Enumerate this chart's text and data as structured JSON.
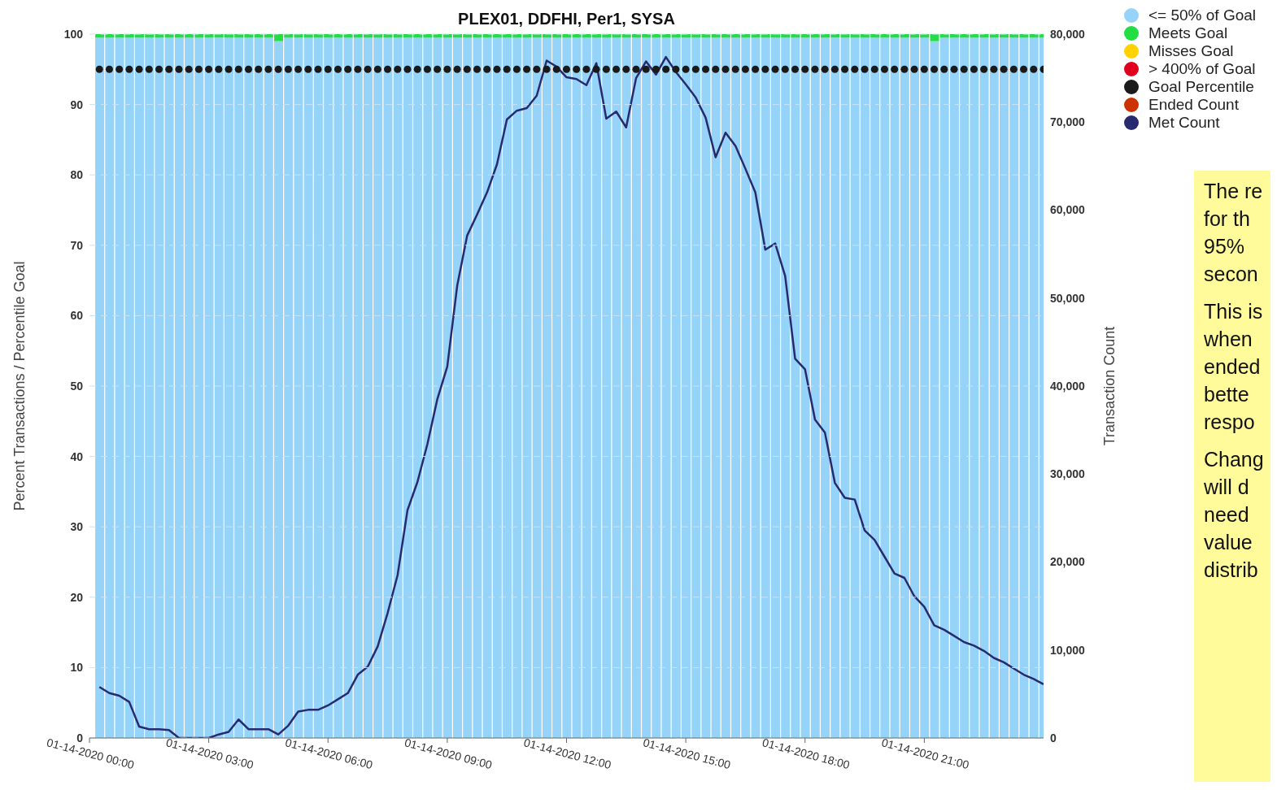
{
  "chart_data": {
    "type": "bar",
    "title": "PLEX01, DDFHI, Per1, SYSA",
    "ylabel": "Percent Transactions / Percentile Goal",
    "y2label": "Transaction Count",
    "stacked": true,
    "grid": "y",
    "legend": "top right",
    "x": [
      "2020-01-14T00:15",
      "2020-01-14T00:30",
      "2020-01-14T00:45",
      "2020-01-14T01:00",
      "2020-01-14T01:15",
      "2020-01-14T01:30",
      "2020-01-14T01:45",
      "2020-01-14T02:00",
      "2020-01-14T02:15",
      "2020-01-14T02:30",
      "2020-01-14T02:45",
      "2020-01-14T03:00",
      "2020-01-14T03:15",
      "2020-01-14T03:30",
      "2020-01-14T03:45",
      "2020-01-14T04:00",
      "2020-01-14T04:15",
      "2020-01-14T04:30",
      "2020-01-14T04:45",
      "2020-01-14T05:00",
      "2020-01-14T05:15",
      "2020-01-14T05:30",
      "2020-01-14T05:45",
      "2020-01-14T06:00",
      "2020-01-14T06:15",
      "2020-01-14T06:30",
      "2020-01-14T06:45",
      "2020-01-14T07:00",
      "2020-01-14T07:15",
      "2020-01-14T07:30",
      "2020-01-14T07:45",
      "2020-01-14T08:00",
      "2020-01-14T08:15",
      "2020-01-14T08:30",
      "2020-01-14T08:45",
      "2020-01-14T09:00",
      "2020-01-14T09:15",
      "2020-01-14T09:30",
      "2020-01-14T09:45",
      "2020-01-14T10:00",
      "2020-01-14T10:15",
      "2020-01-14T10:30",
      "2020-01-14T10:45",
      "2020-01-14T11:00",
      "2020-01-14T11:15",
      "2020-01-14T11:30",
      "2020-01-14T11:45",
      "2020-01-14T12:00",
      "2020-01-14T12:15",
      "2020-01-14T12:30",
      "2020-01-14T12:45",
      "2020-01-14T13:00",
      "2020-01-14T13:15",
      "2020-01-14T13:30",
      "2020-01-14T13:45",
      "2020-01-14T14:00",
      "2020-01-14T14:15",
      "2020-01-14T14:30",
      "2020-01-14T14:45",
      "2020-01-14T15:00",
      "2020-01-14T15:15",
      "2020-01-14T15:30",
      "2020-01-14T15:45",
      "2020-01-14T16:00",
      "2020-01-14T16:15",
      "2020-01-14T16:30",
      "2020-01-14T16:45",
      "2020-01-14T17:00",
      "2020-01-14T17:15",
      "2020-01-14T17:30",
      "2020-01-14T17:45",
      "2020-01-14T18:00",
      "2020-01-14T18:15",
      "2020-01-14T18:30",
      "2020-01-14T18:45",
      "2020-01-14T19:00",
      "2020-01-14T19:15",
      "2020-01-14T19:30",
      "2020-01-14T19:45",
      "2020-01-14T20:00",
      "2020-01-14T20:15",
      "2020-01-14T20:30",
      "2020-01-14T20:45",
      "2020-01-14T21:00",
      "2020-01-14T21:15",
      "2020-01-14T21:30",
      "2020-01-14T21:45",
      "2020-01-14T22:00",
      "2020-01-14T22:15",
      "2020-01-14T22:30",
      "2020-01-14T22:45",
      "2020-01-14T23:00",
      "2020-01-14T23:15",
      "2020-01-14T23:30",
      "2020-01-14T23:45",
      "2020-01-15T00:00"
    ],
    "xlim": [
      "2020-01-14T00:00",
      "2020-01-15T00:00"
    ],
    "xticks": [
      {
        "value": "2020-01-14T00:00",
        "label": "01-14-2020 00:00"
      },
      {
        "value": "2020-01-14T03:00",
        "label": "01-14-2020 03:00"
      },
      {
        "value": "2020-01-14T06:00",
        "label": "01-14-2020 06:00"
      },
      {
        "value": "2020-01-14T09:00",
        "label": "01-14-2020 09:00"
      },
      {
        "value": "2020-01-14T12:00",
        "label": "01-14-2020 12:00"
      },
      {
        "value": "2020-01-14T15:00",
        "label": "01-14-2020 15:00"
      },
      {
        "value": "2020-01-14T18:00",
        "label": "01-14-2020 18:00"
      },
      {
        "value": "2020-01-14T21:00",
        "label": "01-14-2020 21:00"
      }
    ],
    "ylim": [
      0,
      100
    ],
    "yticks": [
      0,
      10,
      20,
      30,
      40,
      50,
      60,
      70,
      80,
      90,
      100
    ],
    "y2lim": [
      0,
      80000
    ],
    "y2ticks": [
      0,
      {
        "value": 10000,
        "label": "10,000"
      },
      {
        "value": 20000,
        "label": "20,000"
      },
      {
        "value": 30000,
        "label": "30,000"
      },
      {
        "value": 40000,
        "label": "40,000"
      },
      {
        "value": 50000,
        "label": "50,000"
      },
      {
        "value": 60000,
        "label": "60,000"
      },
      {
        "value": 70000,
        "label": "70,000"
      },
      {
        "value": 80000,
        "label": "80,000"
      }
    ],
    "series": [
      {
        "name": "<= 50% of Goal",
        "color": "#95d3f9",
        "values": [
          99.5,
          99.5,
          99.5,
          99.5,
          99.5,
          99.5,
          99.5,
          99.5,
          99.5,
          99.5,
          99.5,
          99.5,
          99.5,
          99.5,
          99.5,
          99.5,
          99.5,
          99.5,
          99,
          99.5,
          99.5,
          99.5,
          99.5,
          99.5,
          99.5,
          99.5,
          99.5,
          99.5,
          99.5,
          99.5,
          99.5,
          99.5,
          99.5,
          99.5,
          99.5,
          99.5,
          99.5,
          99.5,
          99.5,
          99.5,
          99.5,
          99.5,
          99.5,
          99.5,
          99.5,
          99.5,
          99.5,
          99.5,
          99.5,
          99.5,
          99.5,
          99.5,
          99.5,
          99.5,
          99.5,
          99.5,
          99.5,
          99.5,
          99.5,
          99.5,
          99.5,
          99.5,
          99.5,
          99.5,
          99.5,
          99.5,
          99.5,
          99.5,
          99.5,
          99.5,
          99.5,
          99.5,
          99.5,
          99.5,
          99.5,
          99.5,
          99.5,
          99.5,
          99.5,
          99.5,
          99.5,
          99.5,
          99.5,
          99.5,
          99,
          99.5,
          99.5,
          99.5,
          99.5,
          99.5,
          99.5,
          99.5,
          99.5,
          99.5,
          99.5,
          99.5
        ]
      },
      {
        "name": "Meets Goal",
        "color": "#22dd44",
        "values": [
          0.5,
          0.5,
          0.5,
          0.5,
          0.5,
          0.5,
          0.5,
          0.5,
          0.5,
          0.5,
          0.5,
          0.5,
          0.5,
          0.5,
          0.5,
          0.5,
          0.5,
          0.5,
          1,
          0.5,
          0.5,
          0.5,
          0.5,
          0.5,
          0.5,
          0.5,
          0.5,
          0.5,
          0.5,
          0.5,
          0.5,
          0.5,
          0.5,
          0.5,
          0.5,
          0.5,
          0.5,
          0.5,
          0.5,
          0.5,
          0.5,
          0.5,
          0.5,
          0.5,
          0.5,
          0.5,
          0.5,
          0.5,
          0.5,
          0.5,
          0.5,
          0.5,
          0.5,
          0.5,
          0.5,
          0.5,
          0.5,
          0.5,
          0.5,
          0.5,
          0.5,
          0.5,
          0.5,
          0.5,
          0.5,
          0.5,
          0.5,
          0.5,
          0.5,
          0.5,
          0.5,
          0.5,
          0.5,
          0.5,
          0.5,
          0.5,
          0.5,
          0.5,
          0.5,
          0.5,
          0.5,
          0.5,
          0.5,
          0.5,
          1,
          0.5,
          0.5,
          0.5,
          0.5,
          0.5,
          0.5,
          0.5,
          0.5,
          0.5,
          0.5,
          0.5
        ]
      },
      {
        "name": "Misses Goal",
        "color": "#ffd200",
        "values": [
          0,
          0,
          0,
          0,
          0,
          0,
          0,
          0,
          0,
          0,
          0,
          0,
          0,
          0,
          0,
          0,
          0,
          0,
          0,
          0,
          0,
          0,
          0,
          0,
          0,
          0,
          0,
          0,
          0,
          0,
          0,
          0,
          0,
          0,
          0,
          0,
          0,
          0,
          0,
          0,
          0,
          0,
          0,
          0,
          0,
          0,
          0,
          0,
          0,
          0,
          0,
          0,
          0,
          0,
          0,
          0,
          0,
          0,
          0,
          0,
          0,
          0,
          0,
          0,
          0,
          0,
          0,
          0,
          0,
          0,
          0,
          0,
          0,
          0,
          0,
          0,
          0,
          0,
          0,
          0,
          0,
          0,
          0,
          0,
          0,
          0,
          0,
          0,
          0,
          0,
          0,
          0,
          0,
          0,
          0,
          0
        ]
      },
      {
        "name": "> 400% of Goal",
        "color": "#e0001b",
        "values": [
          0,
          0,
          0,
          0,
          0,
          0,
          0,
          0,
          0,
          0,
          0,
          0,
          0,
          0,
          0,
          0,
          0,
          0,
          0,
          0,
          0,
          0,
          0,
          0,
          0,
          0,
          0,
          0,
          0,
          0,
          0,
          0,
          0,
          0,
          0,
          0,
          0,
          0,
          0,
          0,
          0,
          0,
          0,
          0,
          0,
          0,
          0,
          0,
          0,
          0,
          0,
          0,
          0,
          0,
          0,
          0,
          0,
          0,
          0,
          0,
          0,
          0,
          0,
          0,
          0,
          0,
          0,
          0,
          0,
          0,
          0,
          0,
          0,
          0,
          0,
          0,
          0,
          0,
          0,
          0,
          0,
          0,
          0,
          0,
          0,
          0,
          0,
          0,
          0,
          0,
          0,
          0,
          0,
          0,
          0,
          0
        ]
      },
      {
        "name": "Goal Percentile",
        "type": "scatter",
        "marker": "circle",
        "color": "#1a1a1a",
        "values": [
          95,
          95,
          95,
          95,
          95,
          95,
          95,
          95,
          95,
          95,
          95,
          95,
          95,
          95,
          95,
          95,
          95,
          95,
          95,
          95,
          95,
          95,
          95,
          95,
          95,
          95,
          95,
          95,
          95,
          95,
          95,
          95,
          95,
          95,
          95,
          95,
          95,
          95,
          95,
          95,
          95,
          95,
          95,
          95,
          95,
          95,
          95,
          95,
          95,
          95,
          95,
          95,
          95,
          95,
          95,
          95,
          95,
          95,
          95,
          95,
          95,
          95,
          95,
          95,
          95,
          95,
          95,
          95,
          95,
          95,
          95,
          95,
          95,
          95,
          95,
          95,
          95,
          95,
          95,
          95,
          95,
          95,
          95,
          95,
          95,
          95,
          95,
          95,
          95,
          95,
          95,
          95,
          95,
          95,
          95,
          95
        ]
      },
      {
        "name": "Ended Count",
        "type": "line",
        "axis": "y2",
        "color": "#cc3300",
        "values": [
          null,
          null,
          null,
          null,
          null,
          null,
          null,
          null,
          null,
          null,
          null,
          null,
          null,
          null,
          null,
          null,
          null,
          null,
          null,
          null,
          null,
          null,
          null,
          null,
          null,
          null,
          null,
          null,
          null,
          null,
          null,
          null,
          null,
          null,
          null,
          null,
          null,
          null,
          null,
          null,
          null,
          null,
          null,
          null,
          null,
          null,
          null,
          null,
          null,
          null,
          null,
          null,
          null,
          null,
          null,
          null,
          null,
          null,
          null,
          null,
          null,
          null,
          null,
          null,
          null,
          null,
          null,
          null,
          null,
          null,
          null,
          null,
          null,
          null,
          null,
          null,
          null,
          null,
          null,
          null,
          null,
          null,
          null,
          null,
          null,
          null,
          null,
          null,
          null,
          null,
          null,
          null,
          null,
          null,
          null,
          null
        ]
      },
      {
        "name": "Met Count",
        "type": "line",
        "axis": "y2",
        "color": "#272a6e",
        "values": [
          5800,
          5100,
          4800,
          4100,
          1300,
          1000,
          1000,
          900,
          0,
          0,
          0,
          0,
          400,
          700,
          2100,
          1000,
          1000,
          1000,
          400,
          1400,
          3000,
          3200,
          3200,
          3700,
          4400,
          5100,
          7200,
          8100,
          10400,
          14200,
          18500,
          25900,
          29100,
          33400,
          38500,
          42200,
          51400,
          57100,
          59500,
          62000,
          65200,
          70300,
          71300,
          71600,
          73000,
          77000,
          76300,
          75100,
          74900,
          74200,
          76700,
          70400,
          71200,
          69400,
          75000,
          76900,
          75400,
          77400,
          75700,
          74300,
          72800,
          70500,
          66000,
          68800,
          67300,
          64700,
          62000,
          55500,
          56200,
          52500,
          43100,
          41900,
          36200,
          34700,
          29000,
          27300,
          27100,
          23600,
          22500,
          20600,
          18700,
          18200,
          16100,
          14900,
          12800,
          12300,
          11600,
          10900,
          10500,
          9900,
          9100,
          8600,
          7900,
          7200,
          6700,
          6100
        ]
      }
    ],
    "annotations": [
      "The re\nfor th\n95%\nsecon",
      "This is\nwhen\nended\nbette\nrespo",
      "Chang\nwill d\nneed\nvalue\ndistrib"
    ]
  }
}
